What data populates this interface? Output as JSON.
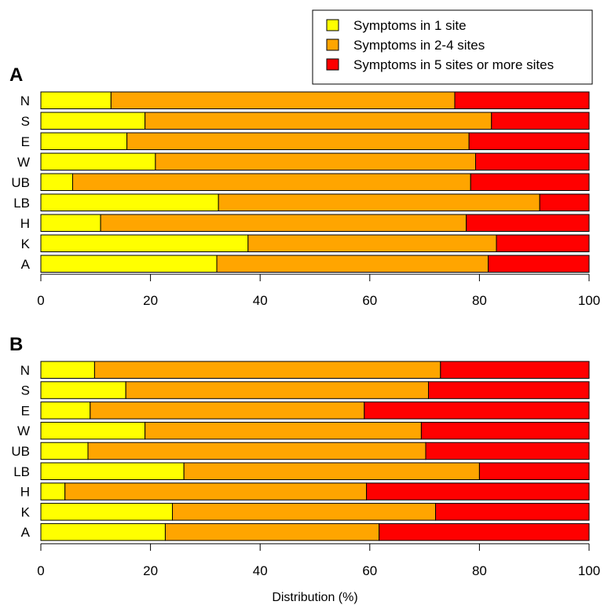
{
  "chart_data": [
    {
      "type": "bar",
      "orientation": "horizontal",
      "stacked": true,
      "panel_label": "A",
      "categories": [
        "N",
        "S",
        "E",
        "W",
        "UB",
        "LB",
        "H",
        "K",
        "A"
      ],
      "series": [
        {
          "name": "Symptoms in 1 site",
          "color": "#FFFF00",
          "values": [
            12.8,
            19.0,
            15.7,
            20.9,
            5.8,
            32.4,
            10.9,
            37.8,
            32.1
          ]
        },
        {
          "name": "Symptoms in 2-4 sites",
          "color": "#FFA500",
          "values": [
            62.7,
            63.2,
            62.4,
            58.4,
            72.6,
            58.6,
            66.7,
            45.3,
            49.5
          ]
        },
        {
          "name": "Symptoms in 5 sites or more sites",
          "color": "#FF0000",
          "values": [
            24.5,
            17.8,
            21.9,
            20.7,
            21.6,
            9.0,
            22.4,
            16.9,
            18.4
          ]
        }
      ],
      "xlim": [
        0,
        100
      ],
      "xticks": [
        0,
        20,
        40,
        60,
        80,
        100
      ],
      "xlabel": ""
    },
    {
      "type": "bar",
      "orientation": "horizontal",
      "stacked": true,
      "panel_label": "B",
      "categories": [
        "N",
        "S",
        "E",
        "W",
        "UB",
        "LB",
        "H",
        "K",
        "A"
      ],
      "series": [
        {
          "name": "Symptoms in 1 site",
          "color": "#FFFF00",
          "values": [
            9.8,
            15.5,
            9.0,
            19.0,
            8.6,
            26.1,
            4.4,
            24.0,
            22.7
          ]
        },
        {
          "name": "Symptoms in 2-4 sites",
          "color": "#FFA500",
          "values": [
            63.1,
            55.2,
            50.0,
            50.4,
            61.6,
            53.9,
            55.0,
            48.0,
            39.0
          ]
        },
        {
          "name": "Symptoms in 5 sites or more sites",
          "color": "#FF0000",
          "values": [
            27.1,
            29.3,
            41.0,
            30.6,
            29.8,
            20.0,
            40.6,
            28.0,
            38.3
          ]
        }
      ],
      "xlim": [
        0,
        100
      ],
      "xticks": [
        0,
        20,
        40,
        60,
        80,
        100
      ],
      "xlabel": "Distribution (%)"
    }
  ],
  "legend": {
    "placement": "top-right",
    "entries": [
      "Symptoms in 1 site",
      "Symptoms in 2-4 sites",
      "Symptoms in 5 sites or more sites"
    ]
  }
}
